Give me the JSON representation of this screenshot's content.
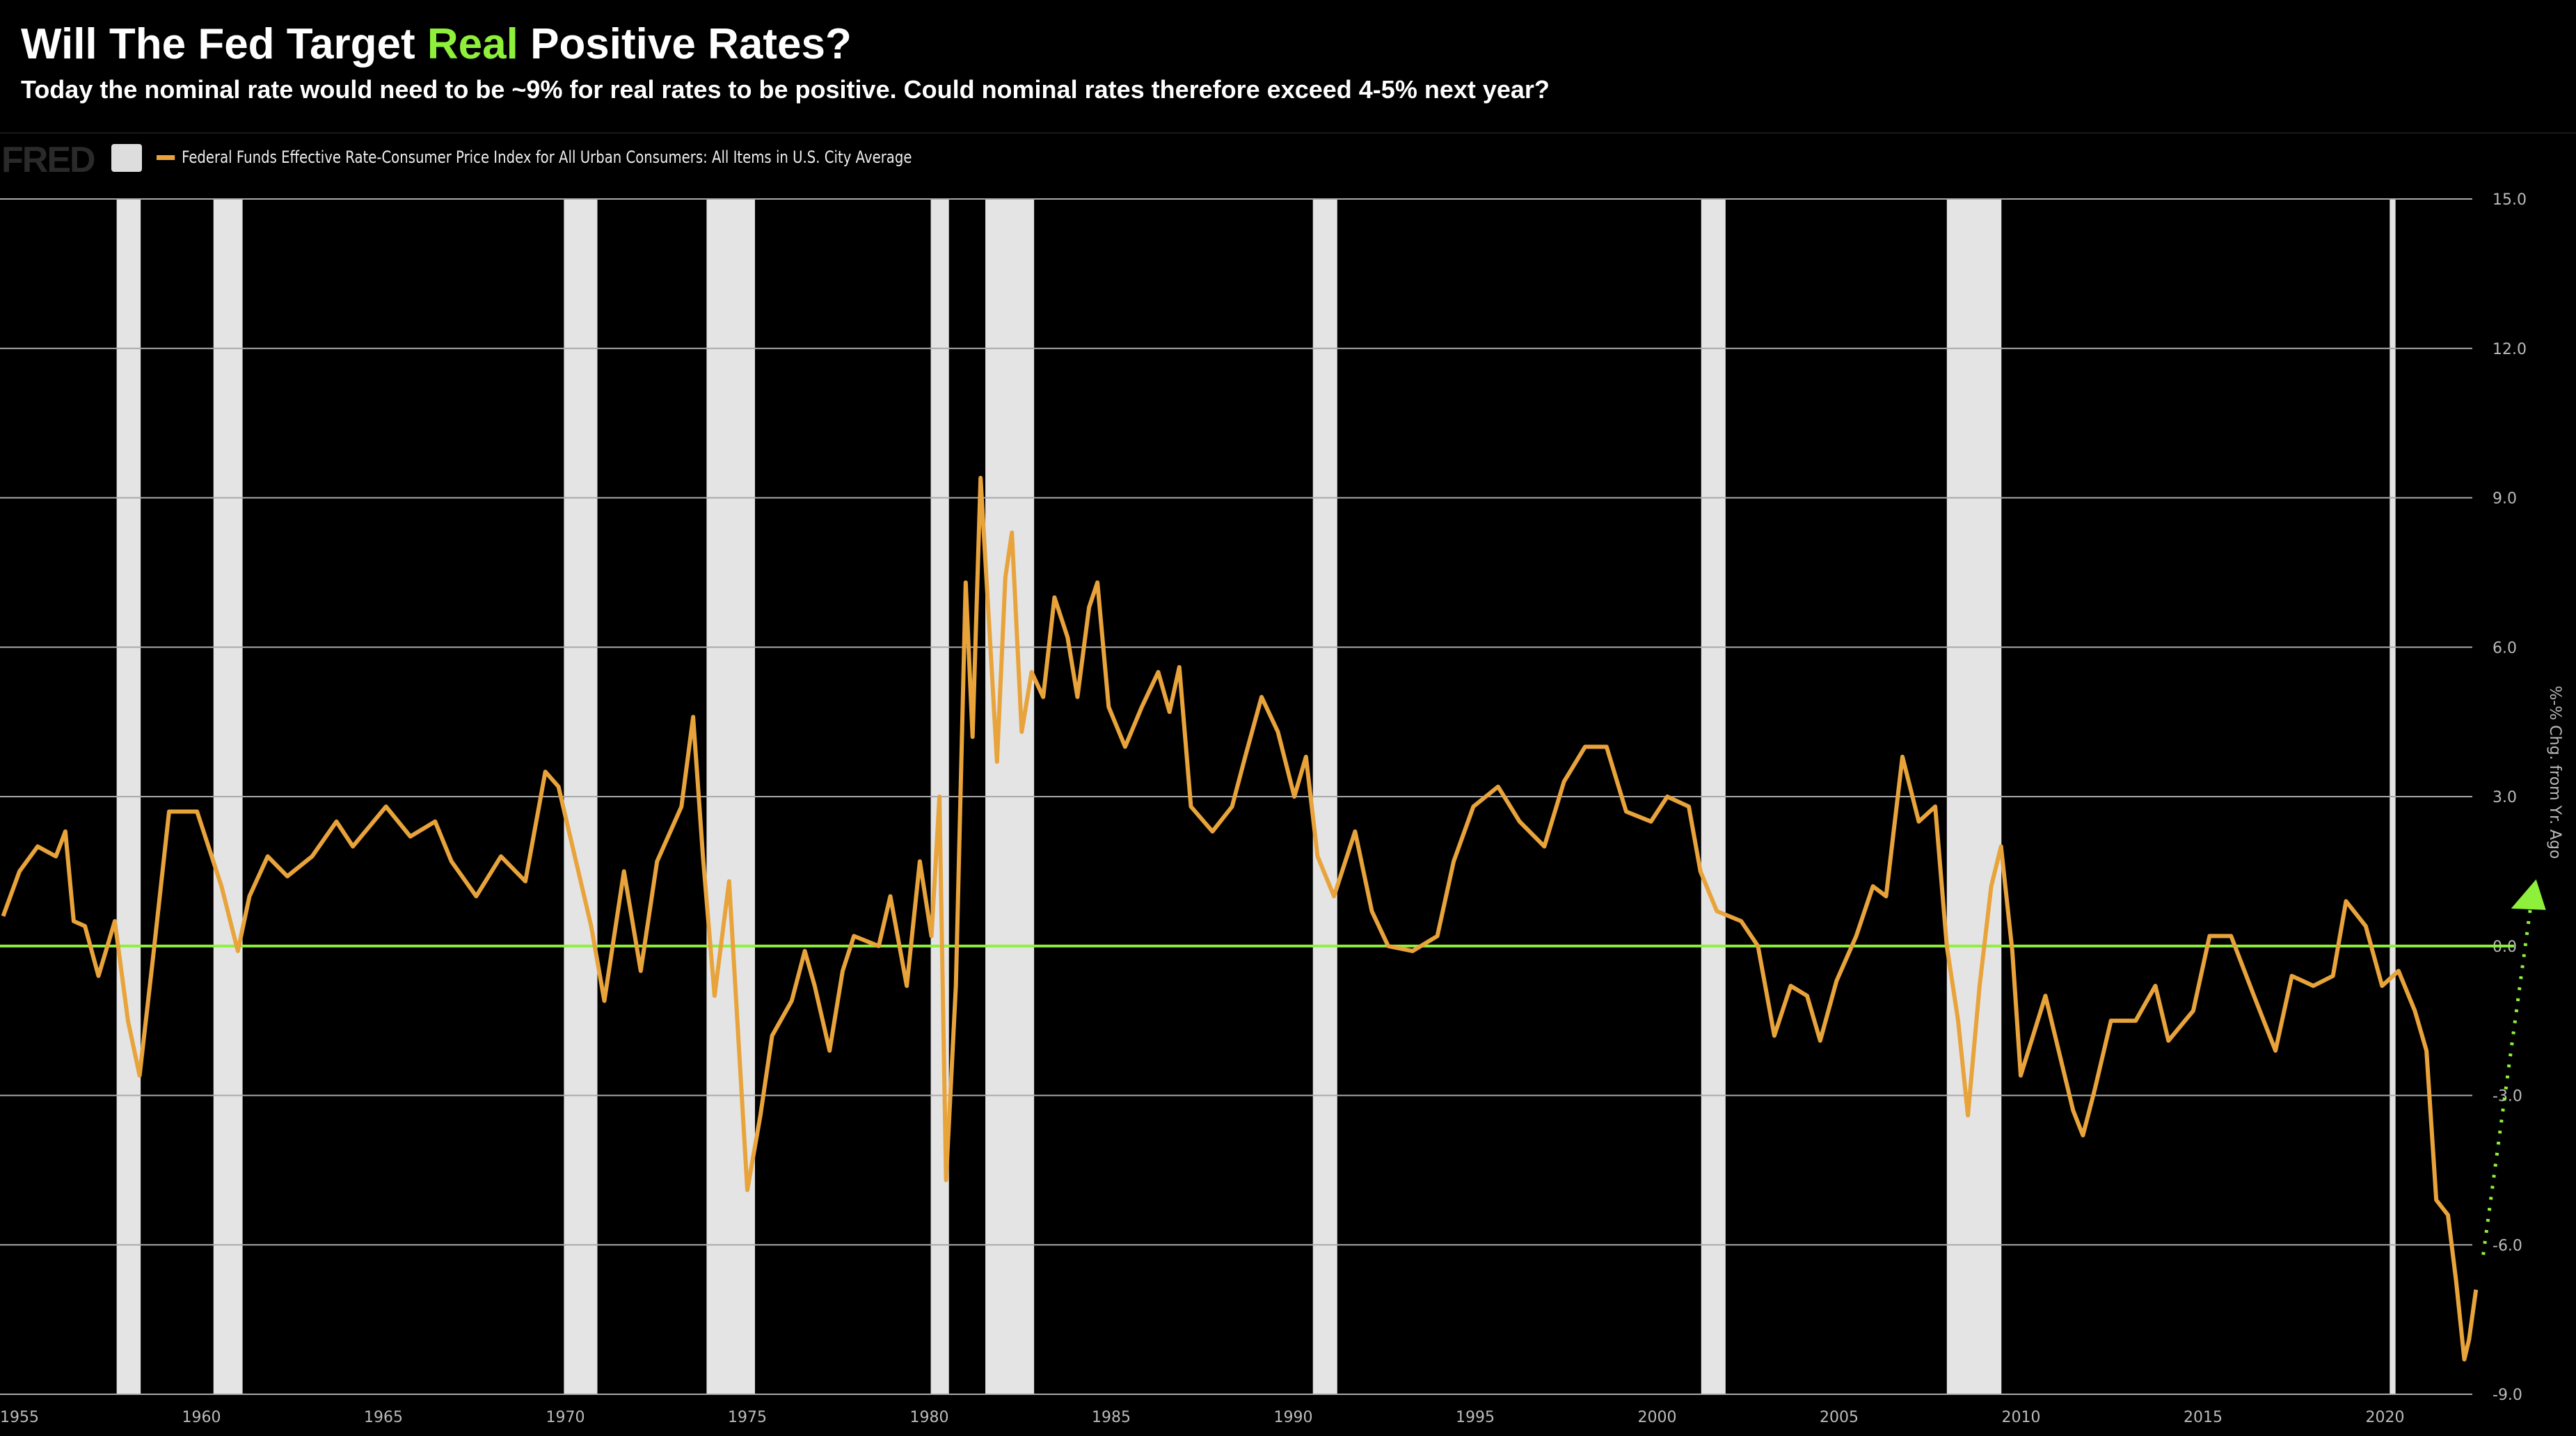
{
  "header": {
    "title_pre": "Will The Fed Target ",
    "title_highlight": "Real",
    "title_post": " Positive Rates?",
    "subtitle": "Today the nominal rate would need to be ~9% for real rates to be positive. Could nominal rates therefore exceed 4-5% next year?",
    "logo_text": "FRED",
    "highlight_color": "#8ef03a"
  },
  "chart_data": {
    "type": "line",
    "ylabel": "%-% Chg. from Yr. Ago",
    "ylim": [
      -9,
      15
    ],
    "xlim": [
      1954.7,
      2024.5
    ],
    "grid": true,
    "legend_position": "top-left",
    "y_ticks": [
      "15.0",
      "12.0",
      "9.0",
      "6.0",
      "3.0",
      "0.0",
      "-3.0",
      "-6.0",
      "-9.0"
    ],
    "x_ticks": [
      "1955",
      "1960",
      "1965",
      "1970",
      "1975",
      "1980",
      "1985",
      "1990",
      "1995",
      "2000",
      "2005",
      "2010",
      "2015",
      "2020"
    ],
    "reference_line": {
      "y": 0,
      "color": "#8ef03a"
    },
    "recessions": [
      [
        1957.67,
        1958.33
      ],
      [
        1960.33,
        1961.13
      ],
      [
        1969.96,
        1970.88
      ],
      [
        1973.88,
        1975.21
      ],
      [
        1980.04,
        1980.54
      ],
      [
        1981.54,
        1982.88
      ],
      [
        1990.54,
        1991.21
      ],
      [
        2001.21,
        2001.88
      ],
      [
        2007.96,
        2009.46
      ],
      [
        2020.13,
        2020.29
      ]
    ],
    "annotation_arrow": {
      "from": [
        2022.7,
        -6.2
      ],
      "to": [
        2024.0,
        1.2
      ],
      "color": "#8ef03a",
      "style": "dotted"
    },
    "series": [
      {
        "name": "Federal Funds Effective Rate-Consumer Price Index for All Urban Consumers: All Items in U.S. City Average",
        "color": "#e8a33b",
        "x": [
          1954.55,
          1955.0,
          1955.5,
          1956.0,
          1956.26,
          1956.49,
          1956.8,
          1957.17,
          1957.62,
          1957.98,
          1958.3,
          1958.66,
          1959.11,
          1959.88,
          1960.55,
          1961.0,
          1961.32,
          1961.82,
          1962.36,
          1963.04,
          1963.71,
          1964.16,
          1965.07,
          1965.74,
          1966.42,
          1966.87,
          1967.55,
          1968.23,
          1968.9,
          1969.45,
          1969.81,
          1970.26,
          1970.71,
          1971.07,
          1971.61,
          1972.07,
          1972.52,
          1973.19,
          1973.51,
          1973.78,
          1974.1,
          1974.5,
          1975.0,
          1975.36,
          1975.68,
          1976.22,
          1976.58,
          1976.85,
          1977.26,
          1977.62,
          1977.93,
          1978.61,
          1978.93,
          1979.38,
          1979.74,
          1980.06,
          1980.28,
          1980.46,
          1980.73,
          1981.0,
          1981.19,
          1981.41,
          1981.64,
          1981.86,
          1982.09,
          1982.27,
          1982.54,
          1982.81,
          1983.13,
          1983.44,
          1983.8,
          1984.07,
          1984.39,
          1984.62,
          1984.93,
          1985.38,
          1985.84,
          1986.29,
          1986.6,
          1986.87,
          1987.19,
          1987.78,
          1988.32,
          1988.68,
          1989.13,
          1989.58,
          1990.03,
          1990.35,
          1990.67,
          1991.12,
          1991.7,
          1992.16,
          1992.61,
          1993.28,
          1993.96,
          1994.41,
          1994.95,
          1995.63,
          1996.22,
          1996.9,
          1997.44,
          1998.02,
          1998.61,
          1999.15,
          1999.83,
          2000.28,
          2000.87,
          2001.19,
          2001.64,
          2002.31,
          2002.77,
          2003.22,
          2003.67,
          2004.12,
          2004.48,
          2004.93,
          2005.47,
          2005.93,
          2006.29,
          2006.74,
          2007.19,
          2007.64,
          2007.96,
          2008.27,
          2008.54,
          2008.86,
          2009.18,
          2009.45,
          2009.76,
          2009.99,
          2010.67,
          2011.43,
          2011.7,
          2012.02,
          2012.47,
          2013.15,
          2013.69,
          2014.05,
          2014.73,
          2015.18,
          2015.77,
          2016.4,
          2016.99,
          2017.44,
          2018.03,
          2018.57,
          2018.93,
          2019.47,
          2019.92,
          2020.37,
          2020.82,
          2021.14,
          2021.41,
          2021.73,
          2021.95,
          2022.18,
          2022.31,
          2022.5
        ],
        "y": [
          0.6,
          1.5,
          2.0,
          1.8,
          2.3,
          0.5,
          0.4,
          -0.6,
          0.5,
          -1.5,
          -2.6,
          -0.3,
          2.7,
          2.7,
          1.2,
          -0.1,
          1.0,
          1.8,
          1.4,
          1.8,
          2.5,
          2.0,
          2.8,
          2.2,
          2.5,
          1.7,
          1.0,
          1.8,
          1.3,
          3.5,
          3.2,
          1.8,
          0.4,
          -1.1,
          1.5,
          -0.5,
          1.7,
          2.8,
          4.6,
          1.8,
          -1.0,
          1.3,
          -4.9,
          -3.4,
          -1.8,
          -1.1,
          -0.1,
          -0.8,
          -2.1,
          -0.5,
          0.2,
          0.0,
          1.0,
          -0.8,
          1.7,
          0.2,
          3.0,
          -4.7,
          -0.8,
          7.3,
          4.2,
          9.4,
          6.5,
          3.7,
          7.4,
          8.3,
          4.3,
          5.5,
          5.0,
          7.0,
          6.2,
          5.0,
          6.8,
          7.3,
          4.8,
          4.0,
          4.8,
          5.5,
          4.7,
          5.6,
          2.8,
          2.3,
          2.8,
          3.8,
          5.0,
          4.3,
          3.0,
          3.8,
          1.8,
          1.0,
          2.3,
          0.7,
          0.0,
          -0.1,
          0.2,
          1.7,
          2.8,
          3.2,
          2.5,
          2.0,
          3.3,
          4.0,
          4.0,
          2.7,
          2.5,
          3.0,
          2.8,
          1.5,
          0.7,
          0.5,
          0.0,
          -1.8,
          -0.8,
          -1.0,
          -1.9,
          -0.7,
          0.2,
          1.2,
          1.0,
          3.8,
          2.5,
          2.8,
          0.0,
          -1.5,
          -3.4,
          -0.8,
          1.2,
          2.0,
          -0.1,
          -2.6,
          -1.0,
          -3.3,
          -3.8,
          -2.9,
          -1.5,
          -1.5,
          -0.8,
          -1.9,
          -1.3,
          0.2,
          0.2,
          -1.0,
          -2.1,
          -0.6,
          -0.8,
          -0.6,
          0.9,
          0.4,
          -0.8,
          -0.5,
          -1.3,
          -2.1,
          -5.1,
          -5.4,
          -6.7,
          -8.3,
          -7.9,
          -6.9
        ]
      }
    ]
  }
}
